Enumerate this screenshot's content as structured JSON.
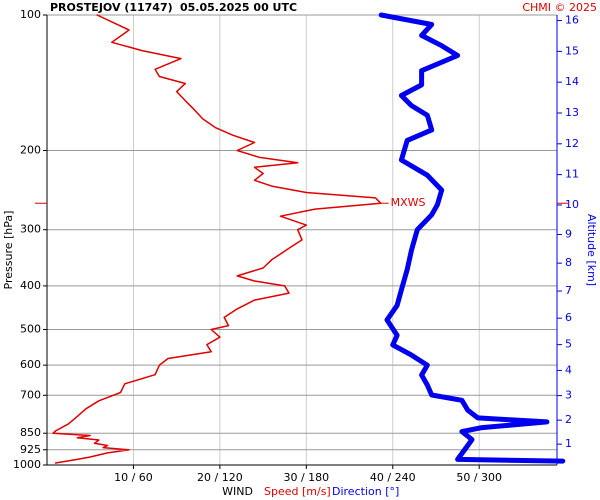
{
  "chart_data": {
    "type": "profile",
    "title": "PROSTEJOV (11747)",
    "subtitle": "05.05.2025 00 UTC",
    "credit": "CHMI © 2025",
    "xlabel": "WIND",
    "ylabel": "Pressure [hPa]",
    "y2label": "Altitude [km]",
    "yscale": "log",
    "ylim": [
      100,
      1000
    ],
    "yticks": [
      100,
      200,
      300,
      400,
      500,
      600,
      700,
      850,
      925,
      1000
    ],
    "xlim": [
      0,
      59
    ],
    "xticks": [
      {
        "value": 10,
        "label": "10 / 60"
      },
      {
        "value": 20,
        "label": "20 / 120"
      },
      {
        "value": 30,
        "label": "30 / 180"
      },
      {
        "value": 40,
        "label": "40 / 240"
      },
      {
        "value": 50,
        "label": "50 / 300"
      }
    ],
    "x2lim": [
      0,
      354
    ],
    "y2lim": [
      0.1,
      16.2
    ],
    "y2ticks": [
      1,
      2,
      3,
      4,
      5,
      6,
      7,
      8,
      9,
      10,
      11,
      12,
      13,
      14,
      15,
      16
    ],
    "grid": true,
    "series": [
      {
        "name": "Speed [m/s]",
        "color": "#e00000",
        "axis": "x",
        "pressure": [
          100,
          108,
          115,
          120,
          125,
          132,
          137,
          142,
          148,
          155,
          162,
          170,
          178,
          185,
          192,
          200,
          207,
          213,
          218,
          225,
          233,
          240,
          248,
          255,
          262,
          270,
          280,
          293,
          300,
          316,
          330,
          350,
          365,
          380,
          390,
          400,
          415,
          430,
          450,
          470,
          490,
          500,
          520,
          540,
          560,
          580,
          600,
          630,
          660,
          690,
          720,
          750,
          780,
          810,
          840,
          850,
          860,
          870,
          880,
          895,
          905,
          915,
          925,
          940,
          960,
          975,
          990
        ],
        "values": [
          5.8,
          9.5,
          7.5,
          11,
          15.5,
          12.5,
          13,
          16,
          15,
          16,
          17,
          18,
          19.5,
          21.5,
          24,
          22,
          24.5,
          29,
          24,
          25,
          24,
          26,
          30,
          38,
          38.6,
          31,
          27,
          30,
          29,
          29.5,
          28,
          26,
          25,
          22,
          24,
          27.5,
          28,
          24,
          22,
          20.5,
          21,
          19,
          20,
          18.5,
          19,
          14,
          13,
          12.5,
          9,
          8.5,
          6,
          4.5,
          3.5,
          2.5,
          1,
          0.7,
          5,
          3.5,
          6,
          5.5,
          7,
          6.5,
          9.5,
          7,
          5,
          3,
          1
        ]
      },
      {
        "name": "Direction [°]",
        "color": "#0000ee",
        "axis": "x2",
        "pressure": [
          100,
          105,
          111,
          117,
          123,
          133,
          143,
          151,
          159,
          167,
          180,
          190,
          210,
          227,
          245,
          264,
          278,
          300,
          333,
          368,
          408,
          442,
          476,
          515,
          541,
          570,
          600,
          631,
          664,
          699,
          718,
          755,
          786,
          802,
          826,
          843,
          878,
          972,
          980
        ],
        "values": [
          232,
          267,
          260,
          274,
          285,
          260,
          260,
          246,
          253,
          264,
          267,
          250,
          246,
          264,
          274,
          271,
          267,
          257,
          253,
          250,
          246,
          243,
          236,
          243,
          240,
          253,
          264,
          260,
          264,
          267,
          288,
          292,
          299,
          347,
          302,
          288,
          295,
          285,
          358
        ]
      }
    ],
    "annotations": [
      {
        "text": "MXWS",
        "pressure": 262,
        "value": 38.6
      }
    ]
  }
}
